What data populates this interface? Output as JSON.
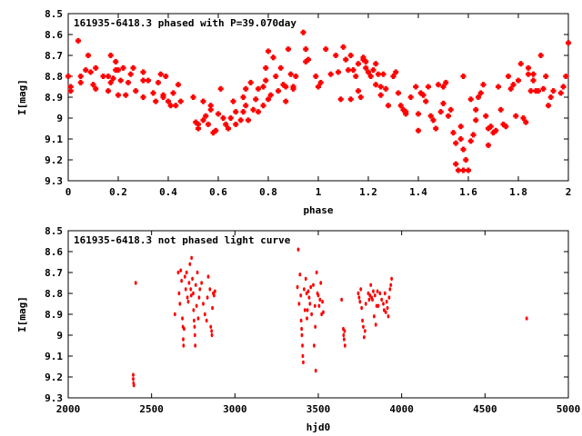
{
  "chart_data": [
    {
      "type": "scatter",
      "title": "161935-6418.3 phased with P=39.070day",
      "xlabel": "phase",
      "ylabel": "I[mag]",
      "xlim": [
        0,
        2
      ],
      "ylim": [
        8.5,
        9.3
      ],
      "y_inverted": true,
      "xticks": [
        "0",
        "0.2",
        "0.4",
        "0.6",
        "0.8",
        "1",
        "1.2",
        "1.4",
        "1.6",
        "1.8",
        "2"
      ],
      "yticks": [
        "8.5",
        "8.6",
        "8.7",
        "8.8",
        "8.9",
        "9",
        "9.1",
        "9.2",
        "9.3"
      ],
      "marker_color": "#ff0000",
      "marker": "plus",
      "points": [
        [
          0.0,
          8.8
        ],
        [
          0.01,
          8.85
        ],
        [
          0.01,
          8.87
        ],
        [
          0.04,
          8.63
        ],
        [
          0.05,
          8.8
        ],
        [
          0.05,
          8.83
        ],
        [
          0.07,
          8.77
        ],
        [
          0.08,
          8.7
        ],
        [
          0.09,
          8.78
        ],
        [
          0.1,
          8.84
        ],
        [
          0.11,
          8.76
        ],
        [
          0.11,
          8.86
        ],
        [
          0.14,
          8.8
        ],
        [
          0.16,
          8.8
        ],
        [
          0.16,
          8.87
        ],
        [
          0.17,
          8.7
        ],
        [
          0.17,
          8.83
        ],
        [
          0.18,
          8.81
        ],
        [
          0.19,
          8.73
        ],
        [
          0.19,
          8.77
        ],
        [
          0.2,
          8.77
        ],
        [
          0.2,
          8.89
        ],
        [
          0.21,
          8.82
        ],
        [
          0.22,
          8.76
        ],
        [
          0.23,
          8.89
        ],
        [
          0.24,
          8.83
        ],
        [
          0.25,
          8.79
        ],
        [
          0.26,
          8.76
        ],
        [
          0.27,
          8.87
        ],
        [
          0.3,
          8.9
        ],
        [
          0.3,
          8.82
        ],
        [
          0.3,
          8.78
        ],
        [
          0.32,
          8.82
        ],
        [
          0.34,
          8.88
        ],
        [
          0.35,
          8.92
        ],
        [
          0.36,
          8.83
        ],
        [
          0.37,
          8.79
        ],
        [
          0.38,
          8.89
        ],
        [
          0.38,
          8.9
        ],
        [
          0.39,
          8.8
        ],
        [
          0.4,
          8.92
        ],
        [
          0.41,
          8.94
        ],
        [
          0.42,
          8.88
        ],
        [
          0.43,
          8.94
        ],
        [
          0.44,
          8.84
        ],
        [
          0.45,
          8.92
        ],
        [
          0.5,
          8.9
        ],
        [
          0.51,
          9.02
        ],
        [
          0.52,
          9.03
        ],
        [
          0.52,
          9.05
        ],
        [
          0.54,
          8.92
        ],
        [
          0.54,
          9.01
        ],
        [
          0.55,
          8.99
        ],
        [
          0.56,
          9.03
        ],
        [
          0.57,
          8.94
        ],
        [
          0.57,
          8.96
        ],
        [
          0.58,
          9.07
        ],
        [
          0.59,
          9.06
        ],
        [
          0.6,
          8.98
        ],
        [
          0.61,
          8.86
        ],
        [
          0.62,
          9.0
        ],
        [
          0.63,
          9.03
        ],
        [
          0.64,
          9.05
        ],
        [
          0.65,
          9.0
        ],
        [
          0.66,
          8.92
        ],
        [
          0.67,
          8.97
        ],
        [
          0.67,
          9.03
        ],
        [
          0.69,
          9.01
        ],
        [
          0.7,
          8.9
        ],
        [
          0.7,
          8.97
        ],
        [
          0.71,
          8.94
        ],
        [
          0.71,
          8.86
        ],
        [
          0.72,
          9.01
        ],
        [
          0.73,
          8.83
        ],
        [
          0.74,
          8.96
        ],
        [
          0.75,
          8.91
        ],
        [
          0.76,
          8.97
        ],
        [
          0.76,
          8.86
        ],
        [
          0.78,
          8.94
        ],
        [
          0.78,
          8.85
        ],
        [
          0.79,
          8.76
        ],
        [
          0.79,
          8.82
        ],
        [
          0.8,
          8.91
        ],
        [
          0.8,
          8.68
        ],
        [
          0.81,
          8.89
        ],
        [
          0.82,
          8.71
        ],
        [
          0.83,
          8.8
        ],
        [
          0.84,
          8.87
        ],
        [
          0.85,
          8.76
        ],
        [
          0.86,
          8.84
        ],
        [
          0.87,
          8.85
        ],
        [
          0.87,
          8.92
        ],
        [
          0.88,
          8.67
        ],
        [
          0.89,
          8.79
        ],
        [
          0.9,
          8.86
        ],
        [
          0.9,
          8.85
        ],
        [
          0.91,
          8.8
        ],
        [
          0.94,
          8.59
        ],
        [
          0.95,
          8.67
        ],
        [
          0.95,
          8.73
        ],
        [
          0.96,
          8.72
        ],
        [
          0.99,
          8.8
        ],
        [
          1.0,
          8.85
        ],
        [
          1.01,
          8.83
        ],
        [
          1.03,
          8.67
        ],
        [
          1.05,
          8.79
        ],
        [
          1.07,
          8.7
        ],
        [
          1.08,
          8.78
        ],
        [
          1.09,
          8.91
        ],
        [
          1.1,
          8.66
        ],
        [
          1.11,
          8.72
        ],
        [
          1.12,
          8.77
        ],
        [
          1.13,
          8.91
        ],
        [
          1.13,
          8.7
        ],
        [
          1.14,
          8.77
        ],
        [
          1.15,
          8.8
        ],
        [
          1.16,
          8.87
        ],
        [
          1.16,
          8.74
        ],
        [
          1.17,
          8.9
        ],
        [
          1.18,
          8.71
        ],
        [
          1.18,
          8.72
        ],
        [
          1.19,
          8.76
        ],
        [
          1.19,
          8.73
        ],
        [
          1.2,
          8.78
        ],
        [
          1.21,
          8.8
        ],
        [
          1.22,
          8.77
        ],
        [
          1.23,
          8.74
        ],
        [
          1.23,
          8.84
        ],
        [
          1.24,
          8.79
        ],
        [
          1.25,
          8.85
        ],
        [
          1.25,
          8.89
        ],
        [
          1.26,
          8.79
        ],
        [
          1.27,
          8.86
        ],
        [
          1.28,
          8.94
        ],
        [
          1.3,
          8.8
        ],
        [
          1.31,
          8.78
        ],
        [
          1.32,
          8.88
        ],
        [
          1.33,
          8.94
        ],
        [
          1.34,
          8.96
        ],
        [
          1.35,
          8.98
        ],
        [
          1.35,
          8.97
        ],
        [
          1.37,
          8.9
        ],
        [
          1.39,
          8.85
        ],
        [
          1.4,
          9.06
        ],
        [
          1.4,
          8.98
        ],
        [
          1.41,
          8.88
        ],
        [
          1.42,
          8.89
        ],
        [
          1.43,
          8.92
        ],
        [
          1.44,
          8.85
        ],
        [
          1.45,
          8.99
        ],
        [
          1.46,
          9.01
        ],
        [
          1.47,
          9.05
        ],
        [
          1.48,
          8.84
        ],
        [
          1.49,
          8.97
        ],
        [
          1.5,
          8.85
        ],
        [
          1.5,
          8.93
        ],
        [
          1.51,
          8.83
        ],
        [
          1.52,
          8.99
        ],
        [
          1.53,
          8.96
        ],
        [
          1.54,
          9.07
        ],
        [
          1.55,
          9.12
        ],
        [
          1.55,
          9.22
        ],
        [
          1.56,
          9.25
        ],
        [
          1.57,
          9.04
        ],
        [
          1.57,
          9.1
        ],
        [
          1.58,
          8.8
        ],
        [
          1.58,
          9.15
        ],
        [
          1.58,
          9.25
        ],
        [
          1.59,
          9.2
        ],
        [
          1.6,
          9.25
        ],
        [
          1.61,
          8.91
        ],
        [
          1.61,
          9.11
        ],
        [
          1.62,
          9.08
        ],
        [
          1.63,
          9.01
        ],
        [
          1.63,
          8.96
        ],
        [
          1.64,
          8.9
        ],
        [
          1.65,
          8.88
        ],
        [
          1.66,
          8.84
        ],
        [
          1.67,
          8.99
        ],
        [
          1.68,
          9.05
        ],
        [
          1.68,
          9.13
        ],
        [
          1.69,
          9.04
        ],
        [
          1.7,
          9.07
        ],
        [
          1.71,
          9.06
        ],
        [
          1.72,
          8.85
        ],
        [
          1.73,
          8.96
        ],
        [
          1.74,
          9.03
        ],
        [
          1.75,
          9.04
        ],
        [
          1.76,
          8.8
        ],
        [
          1.77,
          8.86
        ],
        [
          1.78,
          8.84
        ],
        [
          1.79,
          8.99
        ],
        [
          1.8,
          8.82
        ],
        [
          1.81,
          8.74
        ],
        [
          1.82,
          9.0
        ],
        [
          1.83,
          9.02
        ],
        [
          1.84,
          8.79
        ],
        [
          1.84,
          8.76
        ],
        [
          1.85,
          8.87
        ],
        [
          1.86,
          8.79
        ],
        [
          1.86,
          8.82
        ],
        [
          1.87,
          8.87
        ],
        [
          1.88,
          8.87
        ],
        [
          1.89,
          8.7
        ],
        [
          1.9,
          8.86
        ],
        [
          1.91,
          8.8
        ],
        [
          1.92,
          8.94
        ],
        [
          1.93,
          8.9
        ],
        [
          1.94,
          8.87
        ],
        [
          1.97,
          8.88
        ],
        [
          1.98,
          8.85
        ],
        [
          1.99,
          8.8
        ],
        [
          2.0,
          8.64
        ]
      ]
    },
    {
      "type": "scatter",
      "title": "161935-6418.3 not phased light curve",
      "xlabel": "hjd0",
      "ylabel": "I[mag]",
      "xlim": [
        2000,
        5000
      ],
      "ylim": [
        8.5,
        9.3
      ],
      "y_inverted": true,
      "xticks": [
        "2000",
        "2500",
        "3000",
        "3500",
        "4000",
        "4500",
        "5000"
      ],
      "yticks": [
        "8.5",
        "8.6",
        "8.7",
        "8.8",
        "8.9",
        "9",
        "9.1",
        "9.2",
        "9.3"
      ],
      "marker_color": "#ff0000",
      "marker": "dot",
      "points": [
        [
          2390,
          9.19
        ],
        [
          2390,
          9.21
        ],
        [
          2392,
          9.23
        ],
        [
          2394,
          9.24
        ],
        [
          2405,
          8.75
        ],
        [
          2640,
          8.9
        ],
        [
          2660,
          8.7
        ],
        [
          2665,
          8.8
        ],
        [
          2670,
          8.85
        ],
        [
          2675,
          8.69
        ],
        [
          2680,
          8.74
        ],
        [
          2685,
          8.92
        ],
        [
          2688,
          8.96
        ],
        [
          2690,
          9.02
        ],
        [
          2692,
          9.05
        ],
        [
          2695,
          8.97
        ],
        [
          2700,
          8.72
        ],
        [
          2705,
          8.78
        ],
        [
          2710,
          8.7
        ],
        [
          2715,
          8.82
        ],
        [
          2720,
          8.84
        ],
        [
          2725,
          8.75
        ],
        [
          2730,
          8.66
        ],
        [
          2735,
          8.78
        ],
        [
          2738,
          8.81
        ],
        [
          2740,
          8.63
        ],
        [
          2745,
          8.73
        ],
        [
          2750,
          8.8
        ],
        [
          2752,
          8.88
        ],
        [
          2755,
          8.93
        ],
        [
          2758,
          8.96
        ],
        [
          2760,
          9.0
        ],
        [
          2762,
          9.05
        ],
        [
          2765,
          8.76
        ],
        [
          2770,
          8.86
        ],
        [
          2775,
          8.7
        ],
        [
          2780,
          8.92
        ],
        [
          2785,
          8.82
        ],
        [
          2790,
          8.78
        ],
        [
          2800,
          8.75
        ],
        [
          2810,
          8.85
        ],
        [
          2820,
          8.9
        ],
        [
          2830,
          8.93
        ],
        [
          2835,
          8.82
        ],
        [
          2840,
          8.72
        ],
        [
          2850,
          8.78
        ],
        [
          2855,
          8.96
        ],
        [
          2860,
          8.98
        ],
        [
          2862,
          9.0
        ],
        [
          2865,
          8.87
        ],
        [
          2870,
          8.8
        ],
        [
          2875,
          8.81
        ],
        [
          2880,
          8.79
        ],
        [
          3375,
          8.77
        ],
        [
          3380,
          8.59
        ],
        [
          3385,
          8.85
        ],
        [
          3390,
          8.71
        ],
        [
          3395,
          8.81
        ],
        [
          3397,
          8.93
        ],
        [
          3400,
          8.97
        ],
        [
          3402,
          9.0
        ],
        [
          3405,
          9.05
        ],
        [
          3407,
          9.1
        ],
        [
          3410,
          9.13
        ],
        [
          3415,
          8.78
        ],
        [
          3420,
          8.88
        ],
        [
          3425,
          8.73
        ],
        [
          3430,
          8.8
        ],
        [
          3432,
          8.92
        ],
        [
          3435,
          8.88
        ],
        [
          3440,
          8.79
        ],
        [
          3445,
          8.82
        ],
        [
          3450,
          8.85
        ],
        [
          3455,
          8.77
        ],
        [
          3460,
          8.9
        ],
        [
          3470,
          8.76
        ],
        [
          3475,
          9.05
        ],
        [
          3480,
          8.86
        ],
        [
          3482,
          8.96
        ],
        [
          3485,
          9.17
        ],
        [
          3490,
          8.7
        ],
        [
          3495,
          8.8
        ],
        [
          3500,
          8.81
        ],
        [
          3505,
          8.86
        ],
        [
          3510,
          8.83
        ],
        [
          3515,
          8.75
        ],
        [
          3520,
          8.9
        ],
        [
          3525,
          8.84
        ],
        [
          3530,
          8.89
        ],
        [
          3640,
          8.83
        ],
        [
          3650,
          8.97
        ],
        [
          3652,
          9.0
        ],
        [
          3655,
          9.02
        ],
        [
          3658,
          8.98
        ],
        [
          3660,
          9.05
        ],
        [
          3740,
          8.8
        ],
        [
          3745,
          8.82
        ],
        [
          3750,
          8.84
        ],
        [
          3755,
          8.78
        ],
        [
          3760,
          8.87
        ],
        [
          3765,
          8.93
        ],
        [
          3770,
          8.96
        ],
        [
          3775,
          9.01
        ],
        [
          3780,
          8.98
        ],
        [
          3785,
          8.85
        ],
        [
          3800,
          8.8
        ],
        [
          3805,
          8.83
        ],
        [
          3810,
          8.81
        ],
        [
          3815,
          8.76
        ],
        [
          3820,
          8.82
        ],
        [
          3825,
          8.83
        ],
        [
          3830,
          8.79
        ],
        [
          3835,
          8.91
        ],
        [
          3840,
          8.81
        ],
        [
          3845,
          8.95
        ],
        [
          3850,
          8.86
        ],
        [
          3855,
          8.79
        ],
        [
          3860,
          8.86
        ],
        [
          3870,
          8.8
        ],
        [
          3880,
          8.83
        ],
        [
          3890,
          8.85
        ],
        [
          3895,
          8.88
        ],
        [
          3900,
          8.8
        ],
        [
          3905,
          8.89
        ],
        [
          3910,
          8.84
        ],
        [
          3915,
          8.87
        ],
        [
          3920,
          8.91
        ],
        [
          3925,
          8.82
        ],
        [
          3930,
          8.78
        ],
        [
          3935,
          8.76
        ],
        [
          3940,
          8.73
        ],
        [
          4750,
          8.92
        ]
      ]
    }
  ]
}
